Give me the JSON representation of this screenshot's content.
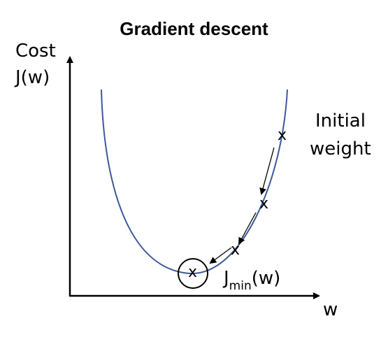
{
  "title": "Gradient descent",
  "y_axis_label_line1": "Cost",
  "y_axis_label_line2": "J(w)",
  "x_axis_label": "w",
  "initial_label_line1": "Initial",
  "initial_label_line2": "weight",
  "min_label_main": "J",
  "min_label_sub": "min",
  "min_label_suffix": "(w)",
  "marker_symbol": "x",
  "curve_color": "#3b5998",
  "axis_color": "#000000"
}
